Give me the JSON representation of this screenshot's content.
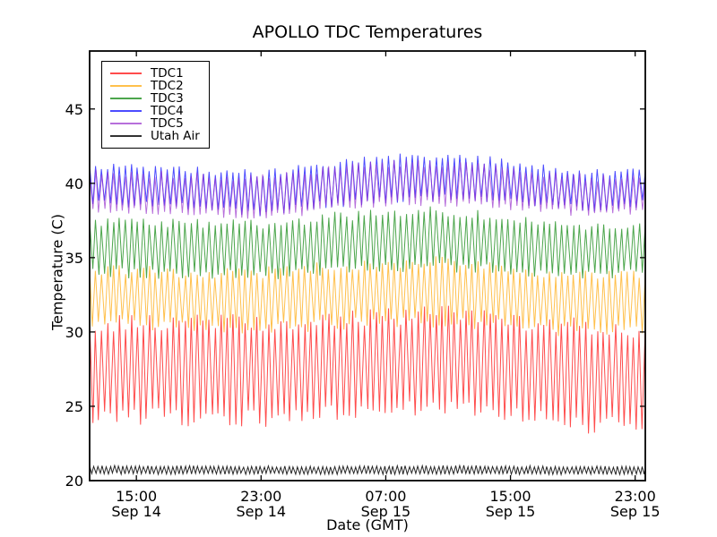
{
  "title": "APOLLO TDC Temperatures",
  "colors": {
    "background": "#ffffff",
    "spine": "#000000",
    "text": "#000000"
  },
  "chart_data": {
    "type": "line",
    "title": "APOLLO TDC Temperatures",
    "xlabel": "Date (GMT)",
    "ylabel": "Temperature (C)",
    "ylim": [
      20,
      48.9
    ],
    "yticks": [
      20,
      25,
      30,
      35,
      40,
      45
    ],
    "grid": false,
    "legend_position": "upper left",
    "x_axis": {
      "unit": "hours_from_Sep_14_12:00_GMT",
      "range_hours": [
        0,
        35.65
      ],
      "ticks": [
        {
          "hour": 3,
          "time": "15:00",
          "date": "Sep 14"
        },
        {
          "hour": 11,
          "time": "23:00",
          "date": "Sep 14"
        },
        {
          "hour": 19,
          "time": "07:00",
          "date": "Sep 15"
        },
        {
          "hour": 27,
          "time": "15:00",
          "date": "Sep 15"
        },
        {
          "hour": 35,
          "time": "23:00",
          "date": "Sep 15"
        }
      ]
    },
    "series": [
      {
        "name": "TDC1",
        "color": "#ff0000",
        "period_minutes": 23,
        "envelope_keyframes_h_mid_amp": [
          [
            0,
            27.5,
            3.2
          ],
          [
            6,
            27.4,
            3.3
          ],
          [
            11,
            27.4,
            3.4
          ],
          [
            19,
            27.9,
            3.3
          ],
          [
            23,
            28.0,
            3.3
          ],
          [
            27,
            27.6,
            3.4
          ],
          [
            31,
            27.1,
            3.5
          ],
          [
            35.65,
            27.0,
            3.4
          ]
        ]
      },
      {
        "name": "TDC2",
        "color": "#ffa500",
        "period_minutes": 23,
        "envelope_keyframes_h_mid_amp": [
          [
            0,
            32.4,
            1.9
          ],
          [
            6,
            32.2,
            1.9
          ],
          [
            11,
            32.1,
            2.0
          ],
          [
            19,
            32.7,
            2.1
          ],
          [
            23,
            32.7,
            2.1
          ],
          [
            27,
            32.3,
            2.0
          ],
          [
            31,
            31.9,
            2.0
          ],
          [
            35.65,
            32.0,
            1.9
          ]
        ]
      },
      {
        "name": "TDC3",
        "color": "#008000",
        "period_minutes": 23,
        "envelope_keyframes_h_mid_amp": [
          [
            0,
            35.7,
            1.8
          ],
          [
            6,
            35.6,
            1.8
          ],
          [
            11,
            35.5,
            1.8
          ],
          [
            19,
            36.2,
            2.0
          ],
          [
            23,
            36.2,
            2.0
          ],
          [
            27,
            35.9,
            1.9
          ],
          [
            31,
            35.4,
            1.7
          ],
          [
            35.65,
            35.5,
            1.7
          ]
        ]
      },
      {
        "name": "TDC4",
        "color": "#0000ff",
        "period_minutes": 23,
        "envelope_keyframes_h_mid_amp": [
          [
            0,
            39.9,
            1.3
          ],
          [
            6,
            39.7,
            1.3
          ],
          [
            11,
            39.3,
            1.4
          ],
          [
            15,
            39.9,
            1.4
          ],
          [
            19,
            40.3,
            1.5
          ],
          [
            23,
            40.4,
            1.5
          ],
          [
            26,
            40.2,
            1.4
          ],
          [
            30,
            39.7,
            1.3
          ],
          [
            33,
            39.5,
            1.3
          ],
          [
            35.65,
            39.8,
            1.2
          ]
        ]
      },
      {
        "name": "TDC5",
        "color": "#9932cc",
        "period_minutes": 23,
        "envelope_keyframes_h_mid_amp": [
          [
            0,
            39.5,
            1.3
          ],
          [
            6,
            39.3,
            1.3
          ],
          [
            11,
            39.0,
            1.4
          ],
          [
            15,
            39.6,
            1.4
          ],
          [
            19,
            40.0,
            1.4
          ],
          [
            23,
            40.0,
            1.4
          ],
          [
            26,
            39.8,
            1.4
          ],
          [
            30,
            39.3,
            1.3
          ],
          [
            33,
            39.1,
            1.3
          ],
          [
            35.65,
            39.4,
            1.2
          ]
        ]
      },
      {
        "name": "Utah Air",
        "color": "#000000",
        "period_minutes": 16,
        "envelope_keyframes_h_mid_amp": [
          [
            0,
            20.72,
            0.27
          ],
          [
            12,
            20.7,
            0.25
          ],
          [
            24,
            20.72,
            0.27
          ],
          [
            35.65,
            20.68,
            0.25
          ]
        ]
      }
    ]
  }
}
